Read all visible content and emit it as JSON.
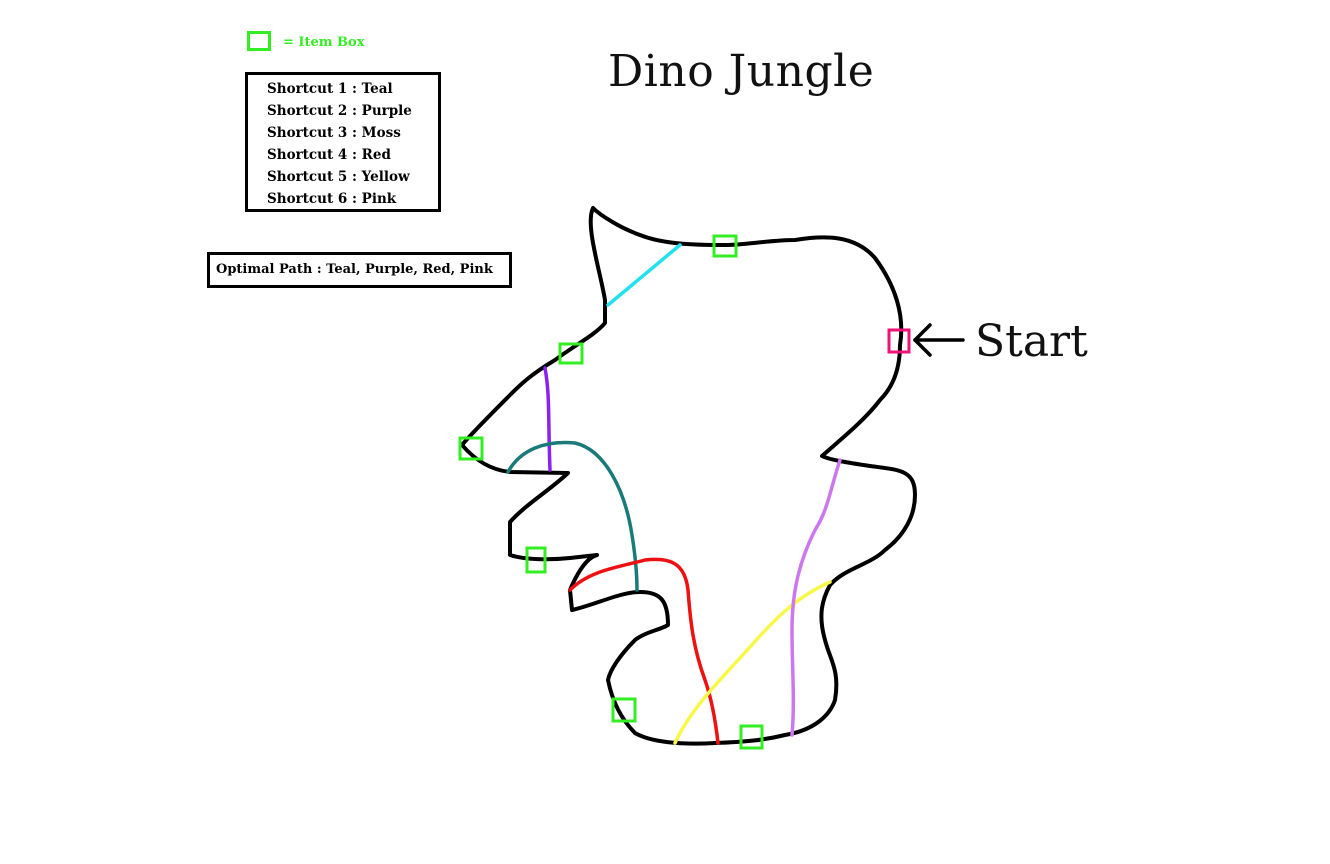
{
  "title": "Dino Jungle",
  "legend": {
    "item_box_label": "= Item Box",
    "item_box_color": "#33ee22"
  },
  "shortcuts": [
    {
      "label": "Shortcut 1 : Teal",
      "color": "#22e0ee"
    },
    {
      "label": "Shortcut 2 : Purple",
      "color": "#8a22ee"
    },
    {
      "label": "Shortcut 3 : Moss",
      "color": "#1a7a7a"
    },
    {
      "label": "Shortcut 4 : Red",
      "color": "#ee1111"
    },
    {
      "label": "Shortcut 5 : Yellow",
      "color": "#f8f84a"
    },
    {
      "label": "Shortcut 6 : Pink",
      "color": "#cc77ee"
    }
  ],
  "optimal_path": "Optimal Path : Teal, Purple, Red, Pink",
  "start_label": "Start",
  "start_marker_color": "#ee1177",
  "track_color": "#000000"
}
